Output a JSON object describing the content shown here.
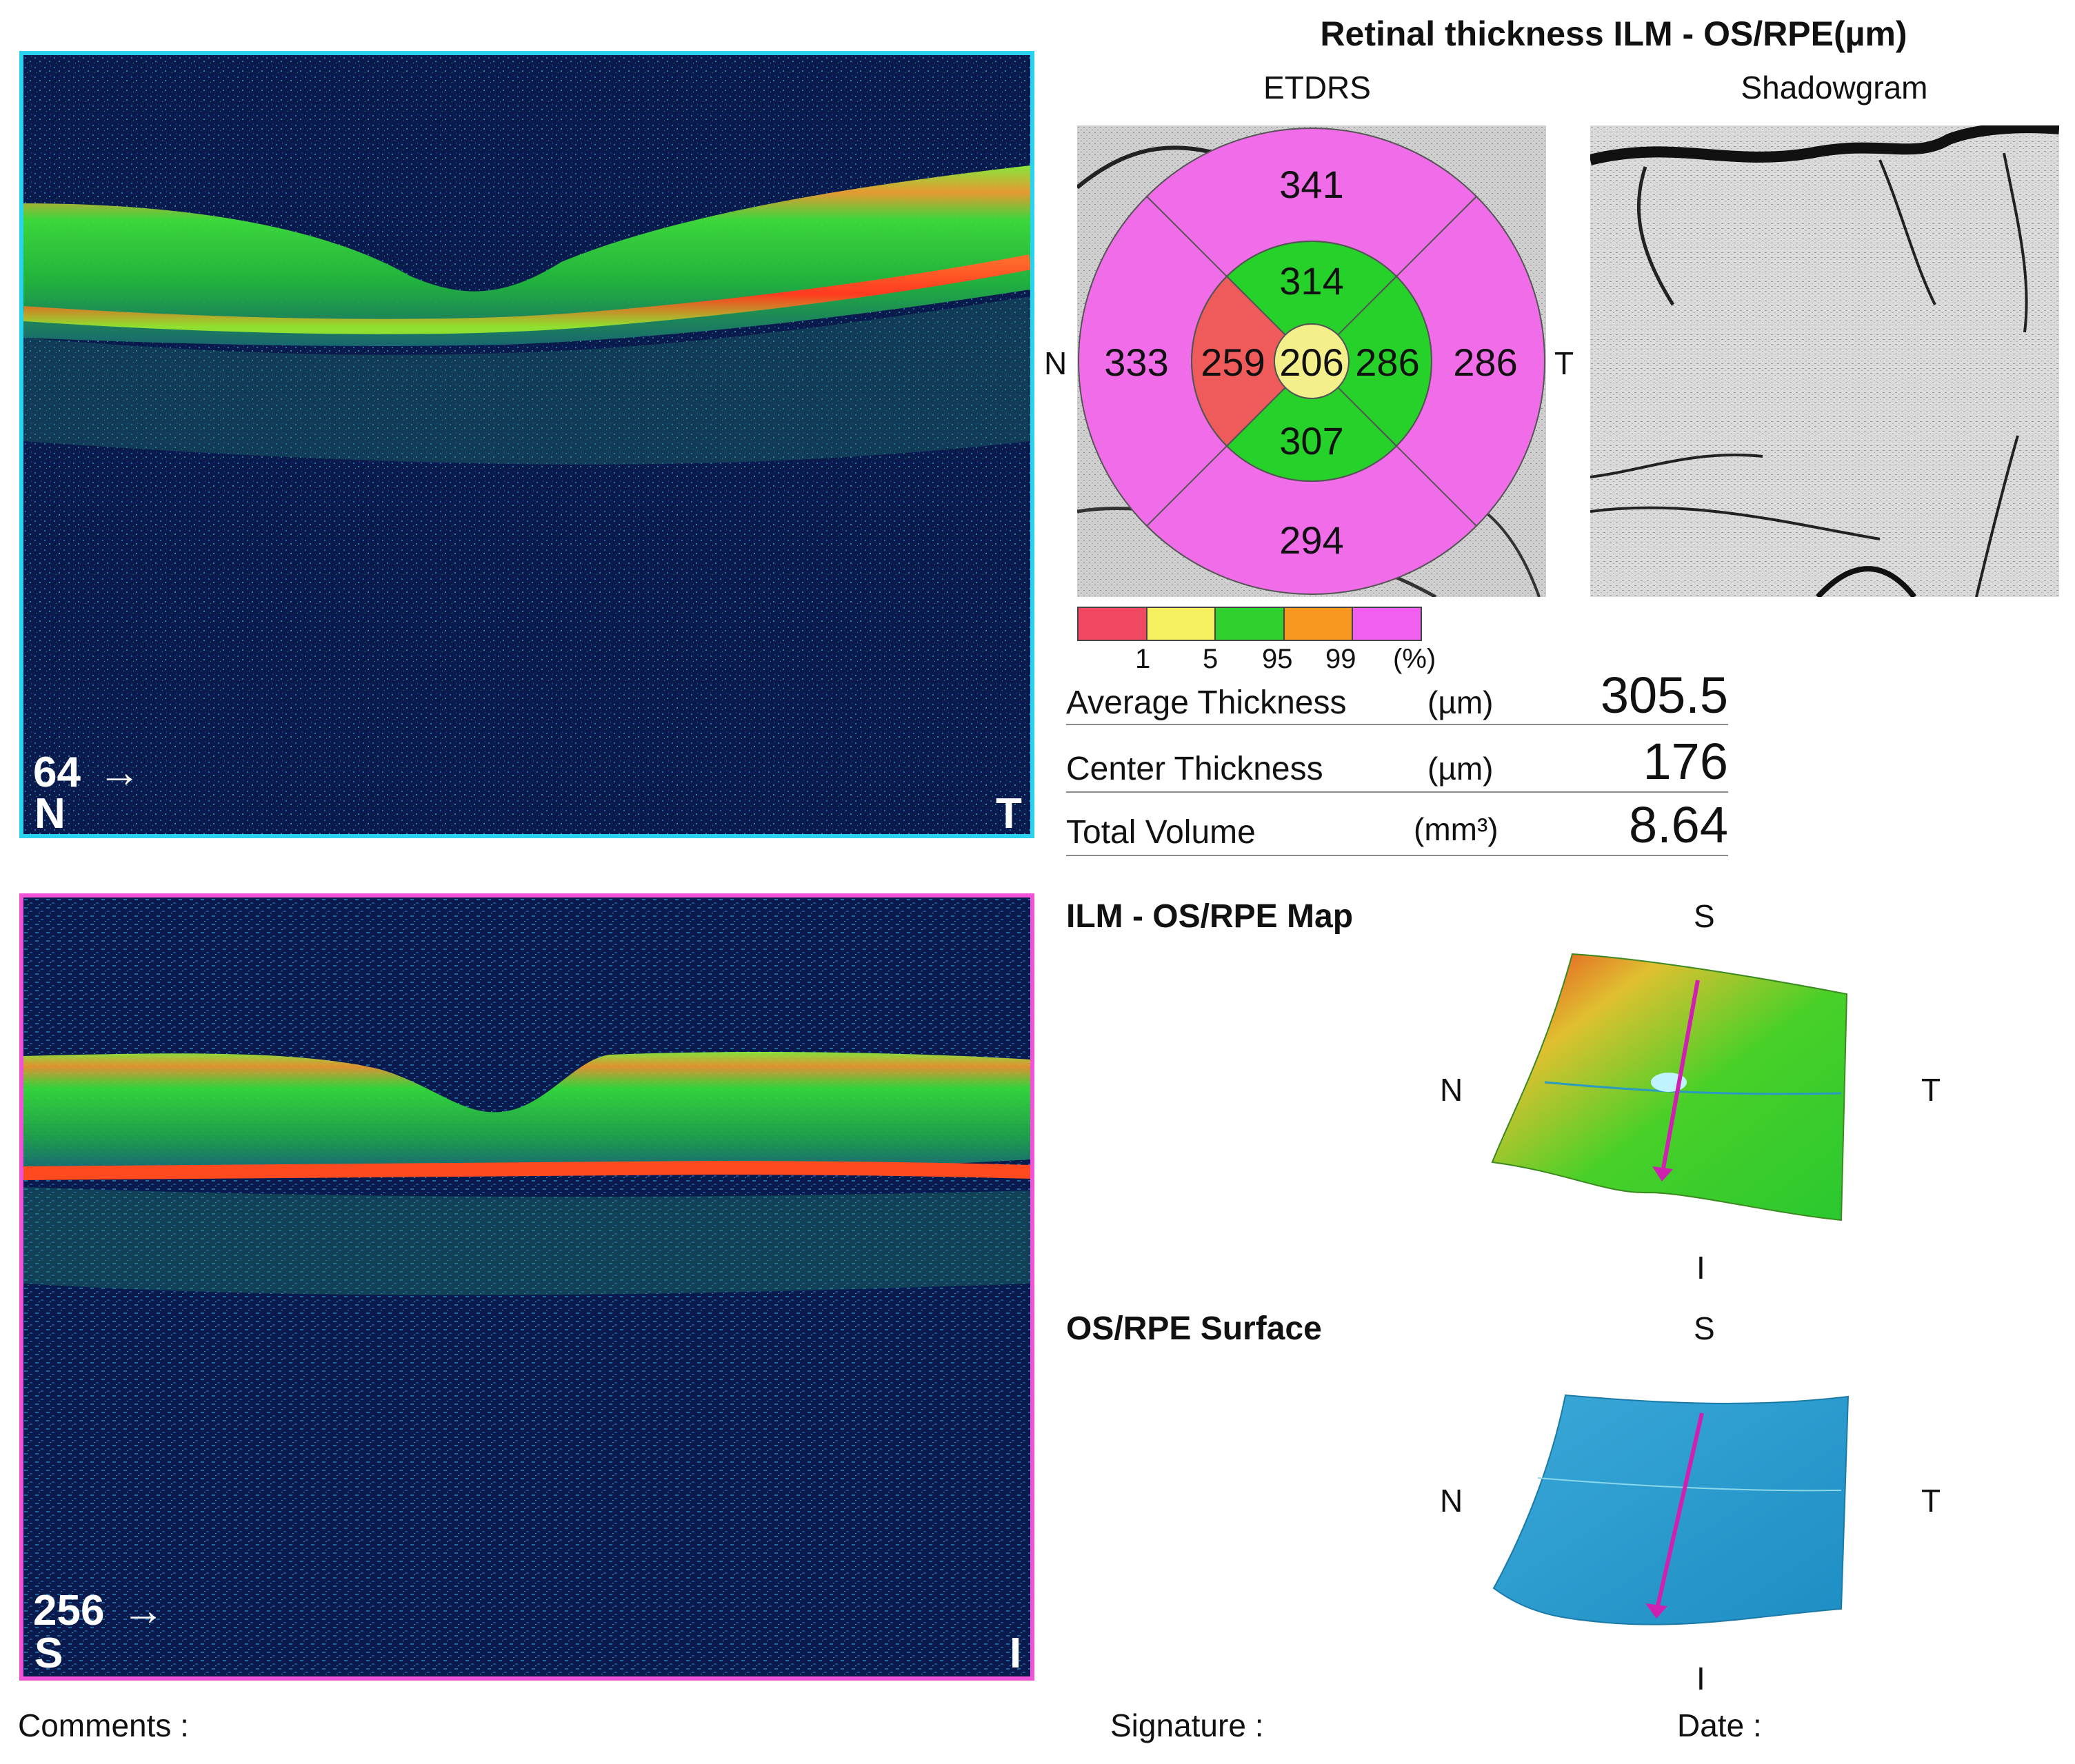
{
  "bscan_horizontal": {
    "slice_number": "64",
    "arrow": "→",
    "left_label": "N",
    "right_label": "T",
    "frame_color": "#29d3f0"
  },
  "bscan_vertical": {
    "slice_number": "256",
    "arrow": "→",
    "left_label": "S",
    "right_label": "I",
    "frame_color": "#f052d8"
  },
  "thickness": {
    "title": "Retinal thickness ILM - OS/RPE(µm)",
    "etdrs_label": "ETDRS",
    "shadowgram_label": "Shadowgram",
    "orientation": {
      "left": "N",
      "right": "T"
    },
    "etdrs": {
      "outer_superior": "341",
      "outer_nasal": "333",
      "outer_temporal": "286",
      "outer_inferior": "294",
      "inner_superior": "314",
      "inner_nasal": "259",
      "inner_temporal": "286",
      "inner_inferior": "307",
      "center": "206"
    },
    "sector_colors": {
      "outer": "#f06ce8",
      "inner_superior": "#26d12a",
      "inner_nasal": "#ef5a5a",
      "inner_temporal": "#26d12a",
      "inner_inferior": "#26d12a",
      "center": "#f3ef8a"
    }
  },
  "legend": {
    "colors": [
      "#f04860",
      "#f4f060",
      "#30d030",
      "#f89820",
      "#f060f0"
    ],
    "ticks": [
      "1",
      "5",
      "95",
      "99",
      "(%)"
    ]
  },
  "metrics": [
    {
      "label": "Average Thickness",
      "unit": "(µm)",
      "value": "305.5"
    },
    {
      "label": "Center Thickness",
      "unit": "(µm)",
      "value": "176"
    },
    {
      "label": "Total Volume",
      "unit": "(mm³)",
      "value": "8.64"
    }
  ],
  "ilm_map": {
    "title": "ILM - OS/RPE Map",
    "top": "S",
    "left": "N",
    "right": "T",
    "bottom": "I"
  },
  "rpe_surface": {
    "title": "OS/RPE Surface",
    "top": "S",
    "left": "N",
    "right": "T",
    "bottom": "I"
  },
  "footer": {
    "comments": "Comments :",
    "signature": "Signature :",
    "date": "Date :"
  }
}
